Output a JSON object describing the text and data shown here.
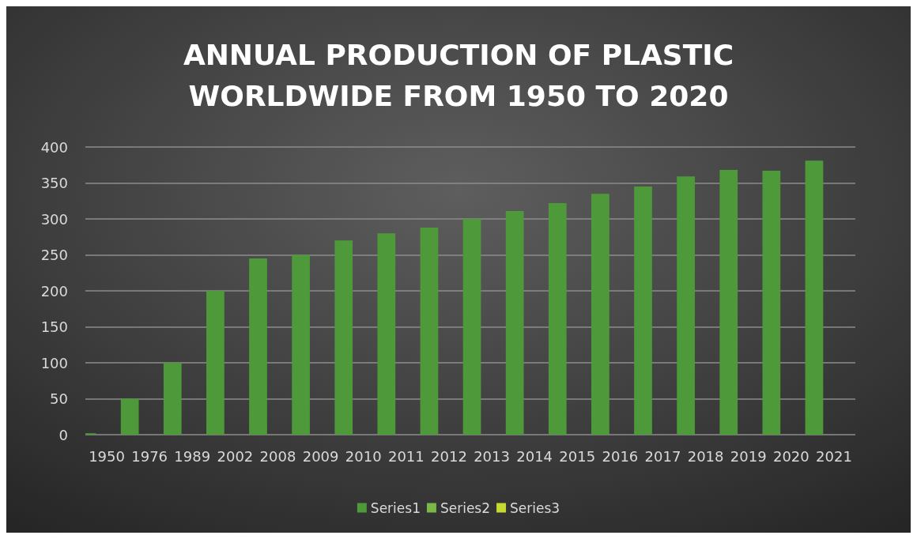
{
  "chart_data": {
    "type": "bar",
    "title": "ANNUAL PRODUCTION OF PLASTIC\nWORLDWIDE FROM 1950 TO 2020",
    "categories": [
      "1950",
      "1976",
      "1989",
      "2002",
      "2008",
      "2009",
      "2010",
      "2011",
      "2012",
      "2013",
      "2014",
      "2015",
      "2016",
      "2017",
      "2018",
      "2019",
      "2020",
      "2021"
    ],
    "series": [
      {
        "name": "Series1",
        "color": "#4e9a3a",
        "values": [
          2,
          50,
          100,
          200,
          245,
          250,
          270,
          280,
          288,
          300,
          311,
          322,
          335,
          345,
          359,
          368,
          367,
          381
        ]
      },
      {
        "name": "Series2",
        "color": "#7ab648",
        "values": [
          null,
          null,
          null,
          null,
          null,
          null,
          null,
          null,
          null,
          null,
          null,
          null,
          null,
          null,
          null,
          null,
          null,
          null
        ]
      },
      {
        "name": "Series3",
        "color": "#c5d930",
        "values": [
          null,
          null,
          null,
          null,
          null,
          null,
          null,
          null,
          null,
          null,
          null,
          null,
          null,
          null,
          null,
          null,
          null,
          null
        ]
      }
    ],
    "ylim": [
      0,
      400
    ],
    "yticks": [
      0,
      50,
      100,
      150,
      200,
      250,
      300,
      350,
      400
    ],
    "grid": "y",
    "legend": "bottom"
  }
}
